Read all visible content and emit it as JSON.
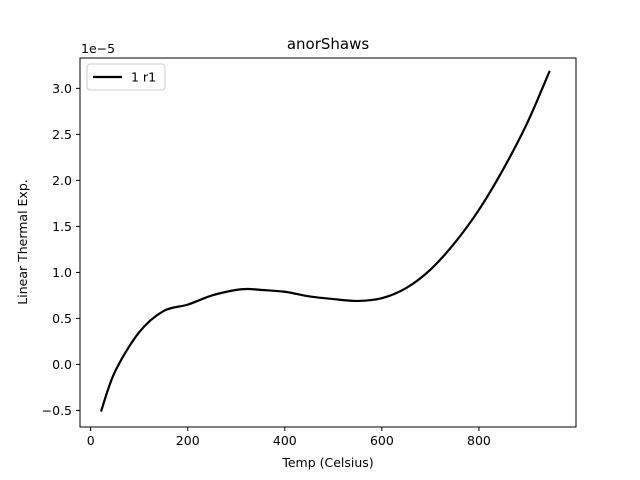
{
  "chart_data": {
    "type": "line",
    "title": "anorShaws",
    "xlabel": "Temp (Celsius)",
    "ylabel": "Linear Thermal Exp.",
    "y_offset_text": "1e−5",
    "y_scale_factor": 1e-05,
    "xlim": [
      -22,
      1000
    ],
    "ylim": [
      -0.68,
      3.33
    ],
    "x_ticks": [
      0,
      200,
      400,
      600,
      800
    ],
    "x_tick_labels": [
      "0",
      "200",
      "400",
      "600",
      "800"
    ],
    "y_ticks": [
      -0.5,
      0.0,
      0.5,
      1.0,
      1.5,
      2.0,
      2.5,
      3.0
    ],
    "y_tick_labels": [
      "−0.5",
      "0.0",
      "0.5",
      "1.0",
      "1.5",
      "2.0",
      "2.5",
      "3.0"
    ],
    "grid": false,
    "legend_position": "top-left",
    "series": [
      {
        "name": "1 r1",
        "color": "#000000",
        "x": [
          22,
          50,
          100,
          150,
          200,
          250,
          300,
          325,
          350,
          400,
          450,
          500,
          550,
          600,
          650,
          700,
          750,
          800,
          850,
          900,
          945
        ],
        "y": [
          -0.5,
          -0.08,
          0.35,
          0.58,
          0.65,
          0.75,
          0.81,
          0.82,
          0.81,
          0.79,
          0.74,
          0.71,
          0.69,
          0.72,
          0.83,
          1.03,
          1.32,
          1.68,
          2.12,
          2.63,
          3.18
        ]
      }
    ]
  }
}
